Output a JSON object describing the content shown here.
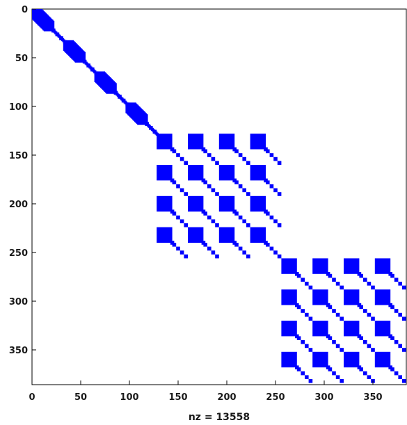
{
  "chart_data": {
    "type": "scatter",
    "description": "sparsity pattern",
    "xlabel": "nz = 13558",
    "xlim": [
      0,
      384
    ],
    "ylim": [
      0,
      384
    ],
    "y_reversed": true,
    "x_ticks": [
      {
        "value": 0,
        "label": "0"
      },
      {
        "value": 50,
        "label": "50"
      },
      {
        "value": 100,
        "label": "100"
      },
      {
        "value": 150,
        "label": "150"
      },
      {
        "value": 200,
        "label": "200"
      },
      {
        "value": 250,
        "label": "250"
      },
      {
        "value": 300,
        "label": "300"
      },
      {
        "value": 350,
        "label": "350"
      }
    ],
    "y_ticks": [
      {
        "value": 0,
        "label": "0"
      },
      {
        "value": 50,
        "label": "50"
      },
      {
        "value": 100,
        "label": "100"
      },
      {
        "value": 150,
        "label": "150"
      },
      {
        "value": 200,
        "label": "200"
      },
      {
        "value": 250,
        "label": "250"
      },
      {
        "value": 300,
        "label": "300"
      },
      {
        "value": 350,
        "label": "350"
      }
    ],
    "marker_color": "#0000ff",
    "grid": false,
    "legend": "none",
    "diagonal_blocks": [
      {
        "range": [
          0,
          16
        ],
        "size": "large"
      },
      {
        "range": [
          16,
          32
        ],
        "size": "small"
      },
      {
        "range": [
          32,
          48
        ],
        "size": "large"
      },
      {
        "range": [
          48,
          64
        ],
        "size": "small"
      },
      {
        "range": [
          64,
          80
        ],
        "size": "large"
      },
      {
        "range": [
          80,
          96
        ],
        "size": "small"
      },
      {
        "range": [
          96,
          112
        ],
        "size": "large"
      },
      {
        "range": [
          112,
          128
        ],
        "size": "small"
      }
    ],
    "coupled_blocks": [
      {
        "offset": 128,
        "count": 4,
        "period": 32,
        "size": 32
      },
      {
        "offset": 256,
        "count": 4,
        "period": 32,
        "size": 32
      }
    ]
  }
}
